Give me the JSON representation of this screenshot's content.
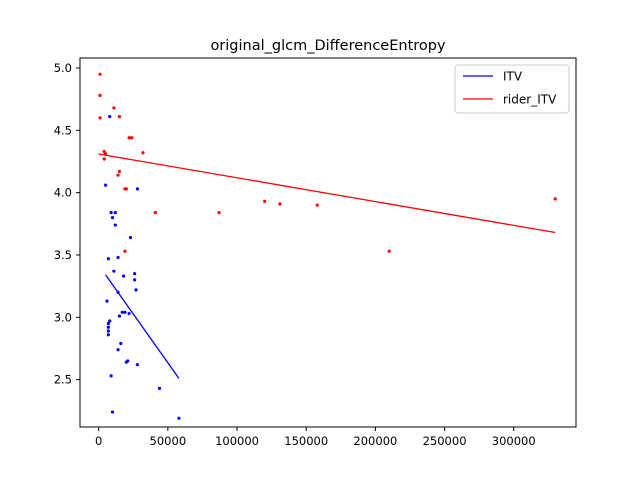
{
  "chart_data": {
    "type": "scatter",
    "title": "original_glcm_DifferenceEntropy",
    "xlabel": "",
    "ylabel": "",
    "xlim": [
      -13500,
      345000
    ],
    "ylim": [
      2.12,
      5.08
    ],
    "x_ticks": [
      0,
      50000,
      100000,
      150000,
      200000,
      250000,
      300000
    ],
    "x_tick_labels": [
      "0",
      "50000",
      "100000",
      "150000",
      "200000",
      "250000",
      "300000"
    ],
    "y_ticks": [
      2.5,
      3.0,
      3.5,
      4.0,
      4.5,
      5.0
    ],
    "y_tick_labels": [
      "2.5",
      "3.0",
      "3.5",
      "4.0",
      "4.5",
      "5.0"
    ],
    "grid": false,
    "legend_position": "top-right",
    "series": [
      {
        "name": "ITV",
        "color": "#0000ff",
        "points": [
          [
            8000,
            4.61
          ],
          [
            5000,
            4.06
          ],
          [
            28000,
            4.03
          ],
          [
            9000,
            3.84
          ],
          [
            12000,
            3.84
          ],
          [
            10000,
            3.8
          ],
          [
            12000,
            3.74
          ],
          [
            23000,
            3.64
          ],
          [
            7000,
            3.47
          ],
          [
            14000,
            3.48
          ],
          [
            11000,
            3.37
          ],
          [
            18000,
            3.33
          ],
          [
            26000,
            3.35
          ],
          [
            26000,
            3.3
          ],
          [
            27000,
            3.22
          ],
          [
            14000,
            3.2
          ],
          [
            6000,
            3.13
          ],
          [
            19000,
            3.04
          ],
          [
            22000,
            3.03
          ],
          [
            17000,
            3.04
          ],
          [
            15000,
            3.01
          ],
          [
            8000,
            2.97
          ],
          [
            7000,
            2.95
          ],
          [
            7000,
            2.92
          ],
          [
            7000,
            2.89
          ],
          [
            7000,
            2.86
          ],
          [
            16000,
            2.79
          ],
          [
            14000,
            2.74
          ],
          [
            21000,
            2.65
          ],
          [
            20000,
            2.64
          ],
          [
            28000,
            2.62
          ],
          [
            9000,
            2.53
          ],
          [
            44000,
            2.43
          ],
          [
            10000,
            2.24
          ],
          [
            58000,
            2.19
          ]
        ],
        "trend": {
          "x": [
            5000,
            58000
          ],
          "y": [
            3.34,
            2.51
          ]
        }
      },
      {
        "name": "rider_ITV",
        "color": "#ff0000",
        "points": [
          [
            1000,
            4.95
          ],
          [
            1000,
            4.78
          ],
          [
            11000,
            4.68
          ],
          [
            1000,
            4.6
          ],
          [
            15000,
            4.61
          ],
          [
            22000,
            4.44
          ],
          [
            24000,
            4.44
          ],
          [
            4000,
            4.33
          ],
          [
            5000,
            4.31
          ],
          [
            32000,
            4.32
          ],
          [
            4000,
            4.27
          ],
          [
            15000,
            4.17
          ],
          [
            14000,
            4.14
          ],
          [
            19000,
            4.03
          ],
          [
            20000,
            4.03
          ],
          [
            41000,
            3.84
          ],
          [
            87000,
            3.84
          ],
          [
            120000,
            3.93
          ],
          [
            131000,
            3.91
          ],
          [
            158000,
            3.9
          ],
          [
            19000,
            3.53
          ],
          [
            210000,
            3.53
          ],
          [
            330000,
            3.95
          ]
        ],
        "trend": {
          "x": [
            0,
            330000
          ],
          "y": [
            4.31,
            3.68
          ]
        }
      }
    ]
  }
}
